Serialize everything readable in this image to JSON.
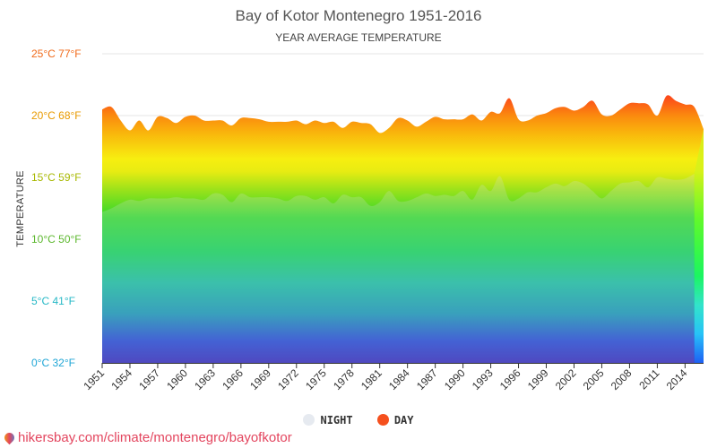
{
  "chart_data": {
    "type": "area",
    "title": "Bay of Kotor Montenegro 1951-2016",
    "subtitle": "YEAR AVERAGE TEMPERATURE",
    "ylabel": "TEMPERATURE",
    "xlabel": "",
    "ylim": [
      0,
      25
    ],
    "xlim": [
      1951,
      2016
    ],
    "yticks": [
      {
        "value": 0,
        "label": "0°C 32°F",
        "color": "#1fa6d6"
      },
      {
        "value": 5,
        "label": "5°C 41°F",
        "color": "#26b8c6"
      },
      {
        "value": 10,
        "label": "10°C 50°F",
        "color": "#5cb82e"
      },
      {
        "value": 15,
        "label": "15°C 59°F",
        "color": "#a8b800"
      },
      {
        "value": 20,
        "label": "20°C 68°F",
        "color": "#e89a00"
      },
      {
        "value": 25,
        "label": "25°C 77°F",
        "color": "#f06a1a"
      }
    ],
    "xticks": [
      1951,
      1954,
      1957,
      1960,
      1963,
      1966,
      1969,
      1972,
      1975,
      1978,
      1981,
      1984,
      1987,
      1990,
      1993,
      1996,
      1999,
      2002,
      2005,
      2008,
      2011,
      2014
    ],
    "grid": true,
    "legend_position": "bottom",
    "x": [
      1951,
      1952,
      1953,
      1954,
      1955,
      1956,
      1957,
      1958,
      1959,
      1960,
      1961,
      1962,
      1963,
      1964,
      1965,
      1966,
      1967,
      1968,
      1969,
      1970,
      1971,
      1972,
      1973,
      1974,
      1975,
      1976,
      1977,
      1978,
      1979,
      1980,
      1981,
      1982,
      1983,
      1984,
      1985,
      1986,
      1987,
      1988,
      1989,
      1990,
      1991,
      1992,
      1993,
      1994,
      1995,
      1996,
      1997,
      1998,
      1999,
      2000,
      2001,
      2002,
      2003,
      2004,
      2005,
      2006,
      2007,
      2008,
      2009,
      2010,
      2011,
      2012,
      2013,
      2014,
      2015,
      2016
    ],
    "series": [
      {
        "name": "NIGHT",
        "color": "#e6eaf0",
        "values": [
          12.2,
          12.5,
          12.9,
          13.2,
          13.1,
          13.3,
          13.3,
          13.3,
          13.4,
          13.3,
          13.3,
          13.2,
          13.7,
          13.6,
          13.0,
          13.7,
          13.4,
          13.4,
          13.4,
          13.3,
          13.1,
          13.5,
          13.5,
          13.2,
          13.4,
          12.9,
          13.6,
          13.4,
          13.4,
          12.7,
          13.0,
          13.9,
          13.1,
          13.1,
          13.4,
          13.7,
          13.5,
          13.6,
          13.5,
          13.9,
          13.2,
          14.4,
          13.9,
          15.1,
          13.2,
          13.3,
          13.8,
          13.8,
          14.2,
          14.5,
          14.3,
          14.7,
          14.5,
          13.9,
          13.3,
          13.9,
          14.5,
          14.6,
          14.7,
          14.2,
          15.0,
          14.9,
          14.8,
          14.9,
          15.3,
          null
        ]
      },
      {
        "name": "DAY",
        "color": "#f5501e",
        "values": [
          20.5,
          20.7,
          19.6,
          18.8,
          19.6,
          18.8,
          19.9,
          19.8,
          19.4,
          19.9,
          20.0,
          19.6,
          19.6,
          19.6,
          19.2,
          19.8,
          19.8,
          19.7,
          19.5,
          19.5,
          19.5,
          19.6,
          19.3,
          19.6,
          19.4,
          19.5,
          19.0,
          19.5,
          19.4,
          19.3,
          18.6,
          19.0,
          19.8,
          19.6,
          19.1,
          19.5,
          19.9,
          19.7,
          19.7,
          19.7,
          20.1,
          19.6,
          20.3,
          20.2,
          21.4,
          19.7,
          19.6,
          20.0,
          20.2,
          20.6,
          20.7,
          20.4,
          20.7,
          21.2,
          20.1,
          20.0,
          20.5,
          21.0,
          21.0,
          20.9,
          20.0,
          21.6,
          21.2,
          20.9,
          20.7,
          18.9
        ]
      }
    ]
  },
  "footer": {
    "link_text": "hikersbay.com/climate/montenegro/bayofkotor"
  }
}
